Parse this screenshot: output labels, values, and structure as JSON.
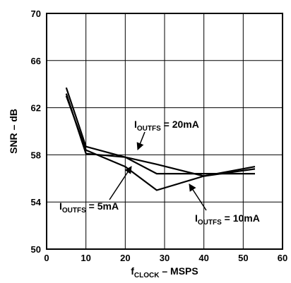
{
  "chart_data": {
    "type": "line",
    "xlabel_main": "f",
    "xlabel_sub": "CLOCK",
    "xlabel_rest": " – MSPS",
    "ylabel": "SNR – dB",
    "xlim": [
      0,
      60
    ],
    "ylim": [
      50,
      70
    ],
    "x_ticks": [
      "0",
      "10",
      "20",
      "30",
      "40",
      "50",
      "60"
    ],
    "y_ticks": [
      "50",
      "54",
      "58",
      "62",
      "66",
      "70"
    ],
    "grid": true,
    "series": [
      {
        "name": "IOUTFS = 20mA",
        "label_main": "I",
        "label_sub": "OUTFS",
        "label_rest": " = 20mA",
        "x": [
          5,
          10,
          20,
          28,
          40,
          53
        ],
        "y": [
          63.7,
          58.7,
          57.8,
          57.2,
          56.2,
          56.8
        ]
      },
      {
        "name": "IOUTFS = 5mA",
        "label_main": "I",
        "label_sub": "OUTFS",
        "label_rest": " = 5mA",
        "x": [
          5,
          10,
          20,
          28,
          40,
          53
        ],
        "y": [
          63.2,
          58.1,
          57.8,
          56.4,
          56.4,
          56.4
        ]
      },
      {
        "name": "IOUTFS = 10mA",
        "label_main": "I",
        "label_sub": "OUTFS",
        "label_rest": " = 10mA",
        "x": [
          5,
          10,
          20,
          28,
          40,
          53
        ],
        "y": [
          63.0,
          58.4,
          57.0,
          55.0,
          56.2,
          57.0
        ]
      }
    ]
  }
}
